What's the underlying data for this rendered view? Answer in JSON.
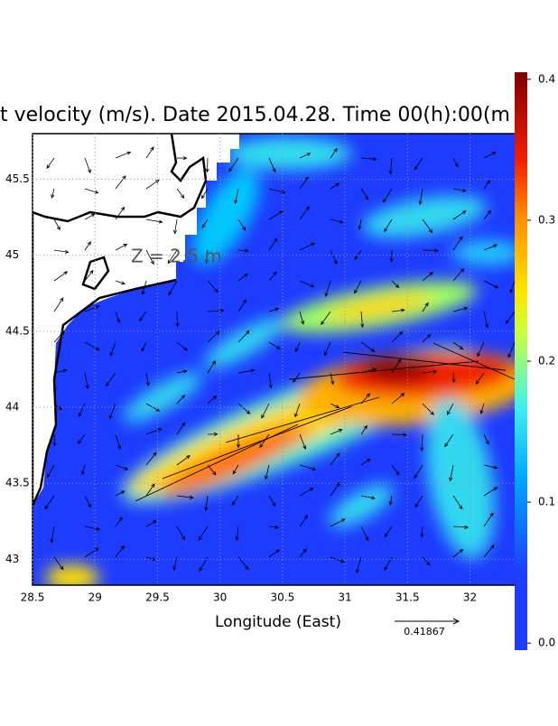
{
  "chart_data": {
    "type": "map",
    "title": "t velocity (m/s). Date 2015.04.28. Time 00(h):00(m",
    "annotation": "Z = 2.5 m",
    "x_label": "Longitude (East)",
    "reference_arrow_label": "0.41867",
    "xlim": [
      28.5,
      32.43
    ],
    "ylim": [
      42.83,
      45.8
    ],
    "xticks": [
      28.5,
      29,
      29.5,
      30,
      30.5,
      31,
      31.5,
      32
    ],
    "yticks": [
      43,
      43.5,
      44,
      44.5,
      45,
      45.5
    ],
    "grid": true,
    "clim": [
      -0.005,
      0.405
    ],
    "colorbar_ticks": [
      {
        "value": 0,
        "label": "0.0"
      },
      0.1,
      0.2,
      0.3,
      0.4
    ]
  }
}
